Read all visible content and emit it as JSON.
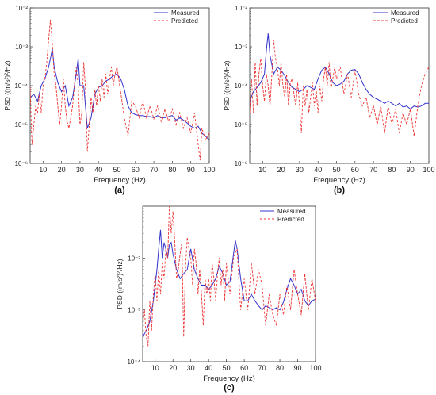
{
  "colors": {
    "measured": "#3333cc",
    "predicted": "#ee3333",
    "axis": "#333333"
  },
  "chart_data": [
    {
      "panel_label": "(a)",
      "type": "line",
      "xlabel": "Frequency (Hz)",
      "ylabel": "PSD ((m/s²)²/Hz)",
      "xlim": [
        3,
        100
      ],
      "ylim": [
        1e-06,
        0.01
      ],
      "y_scale": "log",
      "x_ticks": [
        "10",
        "20",
        "30",
        "40",
        "50",
        "60",
        "70",
        "80",
        "90",
        "100"
      ],
      "y_ticks": [
        "10⁻⁶",
        "10⁻⁵",
        "10⁻⁴",
        "10⁻³",
        "10⁻²"
      ],
      "legend": "top-right",
      "series": [
        {
          "name": "Measured",
          "x": [
            3,
            5,
            7,
            9,
            11,
            13,
            14,
            15,
            16,
            18,
            20,
            22,
            24,
            26,
            28,
            29,
            30,
            32,
            34,
            36,
            38,
            40,
            42,
            44,
            46,
            48,
            50,
            52,
            54,
            56,
            58,
            60,
            62,
            64,
            66,
            68,
            70,
            72,
            74,
            76,
            78,
            80,
            82,
            84,
            86,
            88,
            90,
            92,
            94,
            96,
            98,
            100
          ],
          "y": [
            5e-05,
            6e-05,
            4e-05,
            0.0001,
            0.00015,
            0.0003,
            0.0005,
            0.0009,
            0.0003,
            0.00012,
            7e-05,
            0.0001,
            3e-05,
            5e-05,
            0.0002,
            0.0005,
            0.0001,
            0.0001,
            8e-06,
            1.5e-05,
            6e-05,
            9e-05,
            0.0001,
            0.00013,
            0.00015,
            0.00018,
            0.0002,
            0.00015,
            8e-05,
            3e-05,
            2e-05,
            1.8e-05,
            1.7e-05,
            1.7e-05,
            1.6e-05,
            1.6e-05,
            1.5e-05,
            1.7e-05,
            1.5e-05,
            1.5e-05,
            1.6e-05,
            1.7e-05,
            1.3e-05,
            1.5e-05,
            1.3e-05,
            1.1e-05,
            9e-06,
            8e-06,
            9e-06,
            6e-06,
            5e-06,
            4e-06
          ]
        },
        {
          "name": "Predicted",
          "x": [
            3,
            4,
            5,
            6,
            7,
            8,
            9,
            10,
            11,
            12,
            13,
            14,
            15,
            16,
            17,
            18,
            19,
            20,
            21,
            22,
            23,
            24,
            25,
            26,
            27,
            28,
            29,
            30,
            31,
            32,
            33,
            34,
            35,
            36,
            37,
            38,
            39,
            40,
            41,
            42,
            43,
            44,
            45,
            46,
            47,
            48,
            49,
            50,
            52,
            54,
            56,
            58,
            60,
            62,
            64,
            66,
            68,
            70,
            72,
            74,
            76,
            78,
            80,
            82,
            84,
            86,
            88,
            90,
            92,
            94,
            95,
            96,
            98,
            100
          ],
          "y": [
            9e-05,
            3e-06,
            1e-05,
            3e-05,
            2e-05,
            6e-05,
            2e-05,
            0.0001,
            0.00015,
            0.0004,
            0.0015,
            0.005,
            0.0012,
            0.0002,
            0.0001,
            3e-05,
            1e-05,
            3e-05,
            0.00015,
            3e-05,
            1.2e-05,
            8e-06,
            1.5e-05,
            3e-05,
            0.0001,
            0.0003,
            0.0001,
            1e-05,
            2e-05,
            0.0004,
            8e-05,
            2e-06,
            1e-05,
            5e-05,
            2e-05,
            8e-05,
            3e-05,
            0.0001,
            4e-05,
            0.00015,
            5e-05,
            0.0002,
            6e-05,
            0.00015,
            0.0003,
            0.0001,
            0.0002,
            0.0003,
            7e-05,
            1.5e-05,
            5e-06,
            4e-05,
            3e-05,
            1.5e-05,
            4e-05,
            1.5e-05,
            3e-05,
            1.4e-05,
            3e-05,
            1.2e-05,
            2.5e-05,
            1.2e-05,
            2.5e-05,
            1e-05,
            2e-05,
            8e-06,
            1.5e-05,
            6e-06,
            2e-05,
            3e-06,
            1.2e-06,
            8e-06,
            4e-06,
            6e-06
          ]
        }
      ]
    },
    {
      "panel_label": "(b)",
      "type": "line",
      "xlabel": "Frequency (Hz)",
      "ylabel": "PSD ((m/s²)²/Hz)",
      "xlim": [
        3,
        100
      ],
      "ylim": [
        1e-06,
        0.01
      ],
      "y_scale": "log",
      "x_ticks": [
        "10",
        "20",
        "30",
        "40",
        "50",
        "60",
        "70",
        "80",
        "90",
        "100"
      ],
      "y_ticks": [
        "10⁻⁶",
        "10⁻⁵",
        "10⁻⁴",
        "10⁻³",
        "10⁻²"
      ],
      "legend": "top-right",
      "series": [
        {
          "name": "Measured",
          "x": [
            3,
            5,
            7,
            9,
            11,
            12,
            13,
            14,
            16,
            18,
            20,
            22,
            24,
            26,
            28,
            30,
            32,
            34,
            36,
            38,
            40,
            42,
            44,
            46,
            48,
            50,
            52,
            54,
            56,
            58,
            60,
            62,
            64,
            66,
            68,
            70,
            72,
            74,
            76,
            78,
            80,
            82,
            84,
            86,
            88,
            90,
            92,
            94,
            96,
            98,
            100
          ],
          "y": [
            4e-05,
            7e-05,
            9e-05,
            0.00012,
            0.0002,
            0.0008,
            0.0022,
            0.0006,
            0.0002,
            0.0003,
            0.00025,
            0.00018,
            0.00012,
            9e-05,
            8e-05,
            7e-05,
            8e-05,
            0.0001,
            9e-05,
            8e-05,
            0.00015,
            0.00025,
            0.0003,
            0.0002,
            0.00012,
            0.0001,
            0.00011,
            0.00013,
            0.0002,
            0.00025,
            0.00026,
            0.0002,
            0.00012,
            8e-05,
            6e-05,
            5e-05,
            4.5e-05,
            4e-05,
            3.5e-05,
            4e-05,
            3.5e-05,
            3e-05,
            3.5e-05,
            2.8e-05,
            3e-05,
            2.5e-05,
            3e-05,
            2.8e-05,
            3e-05,
            3.5e-05,
            3.5e-05
          ]
        },
        {
          "name": "Predicted",
          "x": [
            3,
            4,
            5,
            6,
            7,
            8,
            9,
            10,
            11,
            12,
            13,
            14,
            15,
            16,
            17,
            18,
            19,
            20,
            21,
            22,
            23,
            24,
            25,
            26,
            27,
            28,
            29,
            30,
            31,
            32,
            33,
            34,
            35,
            36,
            37,
            38,
            39,
            40,
            41,
            42,
            43,
            44,
            45,
            46,
            47,
            48,
            49,
            50,
            52,
            54,
            56,
            58,
            60,
            62,
            64,
            66,
            68,
            70,
            72,
            74,
            76,
            78,
            80,
            82,
            84,
            86,
            88,
            90,
            92,
            94,
            96,
            98,
            100
          ],
          "y": [
            2e-05,
            0.00015,
            2e-05,
            0.0004,
            3e-05,
            0.0002,
            0.0005,
            0.0001,
            4e-05,
            0.0002,
            0.0001,
            3e-05,
            0.0002,
            0.0015,
            0.0005,
            0.0003,
            0.0001,
            0.0004,
            0.0001,
            5e-05,
            0.0002,
            3e-05,
            0.00012,
            0.00015,
            6e-05,
            3e-05,
            0.00012,
            3e-05,
            6e-06,
            0.0001,
            3e-05,
            8e-05,
            2e-05,
            5e-05,
            0.00012,
            3e-05,
            8e-05,
            2e-05,
            0.0001,
            4e-05,
            0.00015,
            0.0003,
            0.0001,
            0.0004,
            8e-05,
            0.00015,
            0.0003,
            0.00015,
            0.0003,
            6e-05,
            0.0002,
            5e-05,
            0.00025,
            6e-05,
            3e-05,
            5e-05,
            1.5e-05,
            3e-05,
            1e-05,
            3e-05,
            6e-06,
            3e-05,
            1e-05,
            2.5e-05,
            6e-06,
            2e-05,
            1e-05,
            2.5e-05,
            5e-06,
            3e-05,
            0.0001,
            0.0002,
            0.0003
          ]
        }
      ]
    },
    {
      "panel_label": "(c)",
      "type": "line",
      "xlabel": "Frequency (Hz)",
      "ylabel": "PSD ((m/s²)²/Hz)",
      "xlim": [
        3,
        100
      ],
      "ylim": [
        1e-05,
        0.01
      ],
      "y_scale": "log",
      "x_ticks": [
        "10",
        "20",
        "30",
        "40",
        "50",
        "60",
        "70",
        "80",
        "90",
        "100"
      ],
      "y_ticks": [
        "10⁻⁴",
        "10⁻³",
        "10⁻²"
      ],
      "legend": "top-right",
      "series": [
        {
          "name": "Measured",
          "x": [
            3,
            5,
            7,
            9,
            11,
            12,
            13,
            14,
            15,
            16,
            17,
            18,
            19,
            20,
            22,
            24,
            26,
            28,
            30,
            32,
            34,
            36,
            38,
            40,
            42,
            44,
            46,
            48,
            50,
            52,
            54,
            55,
            56,
            58,
            60,
            62,
            64,
            66,
            68,
            70,
            72,
            74,
            76,
            78,
            80,
            82,
            84,
            86,
            88,
            90,
            92,
            94,
            96,
            98,
            100
          ],
          "y": [
            3e-05,
            4e-05,
            6e-05,
            0.00015,
            0.0006,
            0.0015,
            0.0035,
            0.001,
            0.002,
            0.0015,
            0.001,
            0.0018,
            0.002,
            0.0012,
            0.0006,
            0.0004,
            0.0005,
            0.0006,
            0.0015,
            0.0006,
            0.0004,
            0.0003,
            0.0003,
            0.00025,
            0.0003,
            0.0004,
            0.0007,
            0.0005,
            0.0003,
            0.00035,
            0.0012,
            0.0022,
            0.0015,
            0.0004,
            0.00015,
            0.00015,
            0.0002,
            0.00015,
            0.00012,
            0.0001,
            0.00012,
            0.00011,
            0.0001,
            0.00011,
            0.0001,
            0.00014,
            0.00025,
            0.0004,
            0.0003,
            0.0002,
            0.00025,
            0.00015,
            0.00012,
            0.00015,
            0.00016
          ]
        },
        {
          "name": "Predicted",
          "x": [
            3,
            4,
            5,
            6,
            7,
            8,
            9,
            10,
            11,
            12,
            13,
            14,
            15,
            16,
            17,
            18,
            19,
            20,
            21,
            22,
            23,
            24,
            25,
            26,
            27,
            28,
            29,
            30,
            31,
            32,
            33,
            34,
            35,
            36,
            37,
            38,
            39,
            40,
            41,
            42,
            43,
            44,
            45,
            46,
            47,
            48,
            49,
            50,
            52,
            54,
            56,
            58,
            60,
            62,
            64,
            66,
            68,
            70,
            72,
            74,
            76,
            78,
            80,
            82,
            84,
            86,
            88,
            90,
            92,
            94,
            96,
            98,
            100
          ],
          "y": [
            5e-05,
            0.0001,
            3e-05,
            2e-05,
            0.00015,
            4e-05,
            0.0002,
            0.0005,
            0.00015,
            0.0006,
            0.0002,
            0.0008,
            0.0004,
            0.0015,
            0.001,
            0.01,
            0.003,
            0.008,
            0.002,
            0.0004,
            0.0006,
            0.0012,
            0.002,
            3e-05,
            0.0006,
            0.0025,
            0.0015,
            0.001,
            0.0003,
            0.0015,
            0.0008,
            0.0002,
            0.0006,
            0.0002,
            5e-05,
            0.0004,
            0.0002,
            0.0004,
            0.00015,
            0.0008,
            0.0004,
            0.00015,
            0.0005,
            0.001,
            0.0003,
            0.0006,
            0.00015,
            0.0008,
            0.0002,
            0.001,
            0.0015,
            0.0001,
            0.0004,
            0.0001,
            0.0008,
            0.0002,
            0.0006,
            0.0003,
            5e-05,
            0.0002,
            8e-05,
            5e-05,
            0.0002,
            8e-05,
            0.0003,
            0.0001,
            0.0006,
            0.0002,
            8e-05,
            0.0005,
            0.0001,
            0.0004,
            0.00015
          ]
        }
      ]
    }
  ]
}
